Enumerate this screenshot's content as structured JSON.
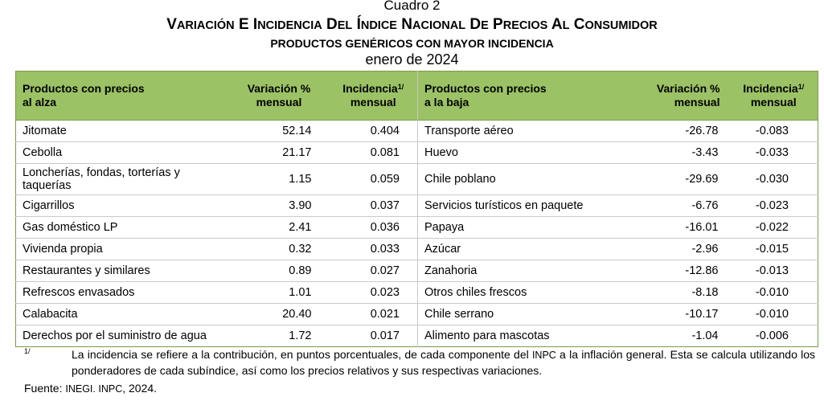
{
  "header": {
    "cuadro": "Cuadro 2",
    "title": "VARIACIÓN E INCIDENCIA DEL ÍNDICE NACIONAL DE PRECIOS AL CONSUMIDOR",
    "subtitle": "PRODUCTOS GENÉRICOS CON MAYOR INCIDENCIA",
    "period": "enero de 2024"
  },
  "table": {
    "headers": {
      "up_products_1": "Productos con precios",
      "up_products_2": "al alza",
      "up_var_1": "Variación %",
      "up_var_2": "mensual",
      "up_inc_1": "Incidencia",
      "up_inc_sup": "1/",
      "up_inc_2": "mensual",
      "down_products_1": "Productos con precios",
      "down_products_2": "a la baja",
      "down_var_1": "Variación %",
      "down_var_2": "mensual",
      "down_inc_1": "Incidencia",
      "down_inc_sup": "1/",
      "down_inc_2": "mensual"
    },
    "rows": [
      {
        "up_name": "Jitomate",
        "up_var": "52.14",
        "up_inc": "0.404",
        "down_name": "Transporte aéreo",
        "down_var": "-26.78",
        "down_inc": "-0.083"
      },
      {
        "up_name": "Cebolla",
        "up_var": "21.17",
        "up_inc": "0.081",
        "down_name": "Huevo",
        "down_var": "-3.43",
        "down_inc": "-0.033"
      },
      {
        "up_name_1": "Loncherías, fondas, torterías y",
        "up_name_2": "taquerías",
        "up_var": "1.15",
        "up_inc": "0.059",
        "down_name": "Chile poblano",
        "down_var": "-29.69",
        "down_inc": "-0.030"
      },
      {
        "up_name": "Cigarrillos",
        "up_var": "3.90",
        "up_inc": "0.037",
        "down_name": "Servicios turísticos en paquete",
        "down_var": "-6.76",
        "down_inc": "-0.023"
      },
      {
        "up_name": "Gas doméstico LP",
        "up_var": "2.41",
        "up_inc": "0.036",
        "down_name": "Papaya",
        "down_var": "-16.01",
        "down_inc": "-0.022"
      },
      {
        "up_name": "Vivienda propia",
        "up_var": "0.32",
        "up_inc": "0.033",
        "down_name": "Azúcar",
        "down_var": "-2.96",
        "down_inc": "-0.015"
      },
      {
        "up_name": "Restaurantes y similares",
        "up_var": "0.89",
        "up_inc": "0.027",
        "down_name": "Zanahoria",
        "down_var": "-12.86",
        "down_inc": "-0.013"
      },
      {
        "up_name": "Refrescos envasados",
        "up_var": "1.01",
        "up_inc": "0.023",
        "down_name": "Otros chiles frescos",
        "down_var": "-8.18",
        "down_inc": "-0.010"
      },
      {
        "up_name": "Calabacita",
        "up_var": "20.40",
        "up_inc": "0.021",
        "down_name": "Chile serrano",
        "down_var": "-10.17",
        "down_inc": "-0.010"
      },
      {
        "up_name": "Derechos por el suministro de agua",
        "up_var": "1.72",
        "up_inc": "0.017",
        "down_name": "Alimento para mascotas",
        "down_var": "-1.04",
        "down_inc": "-0.006"
      }
    ]
  },
  "footnote": {
    "mark": "1/",
    "text_1": "La incidencia se refiere a la contribución, en puntos porcentuales, de cada componente del ",
    "inpc": "INPC",
    "text_2": " a la inflación general. Esta se calcula utilizando los ponderadores de cada subíndice, así como los precios relativos y sus respectivas variaciones."
  },
  "source": {
    "label": "Fuente: ",
    "org": "INEGI. INPC",
    "year": ", 2024."
  }
}
